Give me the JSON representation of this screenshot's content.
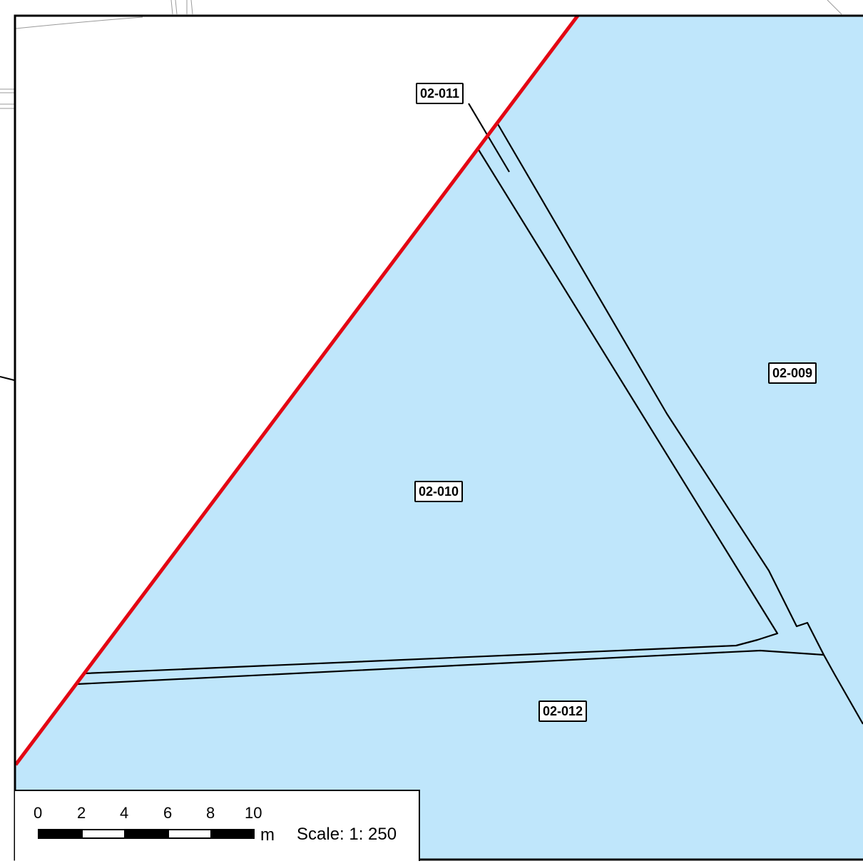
{
  "map": {
    "colors": {
      "parcel_fill": "#bfe6fb",
      "boundary_red": "#e30613",
      "parcel_line": "#000000",
      "background": "#ffffff"
    },
    "parcels": [
      {
        "id": "02-011"
      },
      {
        "id": "02-009"
      },
      {
        "id": "02-010"
      },
      {
        "id": "02-012"
      }
    ]
  },
  "scale_bar": {
    "ticks": [
      "0",
      "2",
      "4",
      "6",
      "8",
      "10"
    ],
    "unit": "m",
    "scale_text": "Scale: 1: 250"
  }
}
